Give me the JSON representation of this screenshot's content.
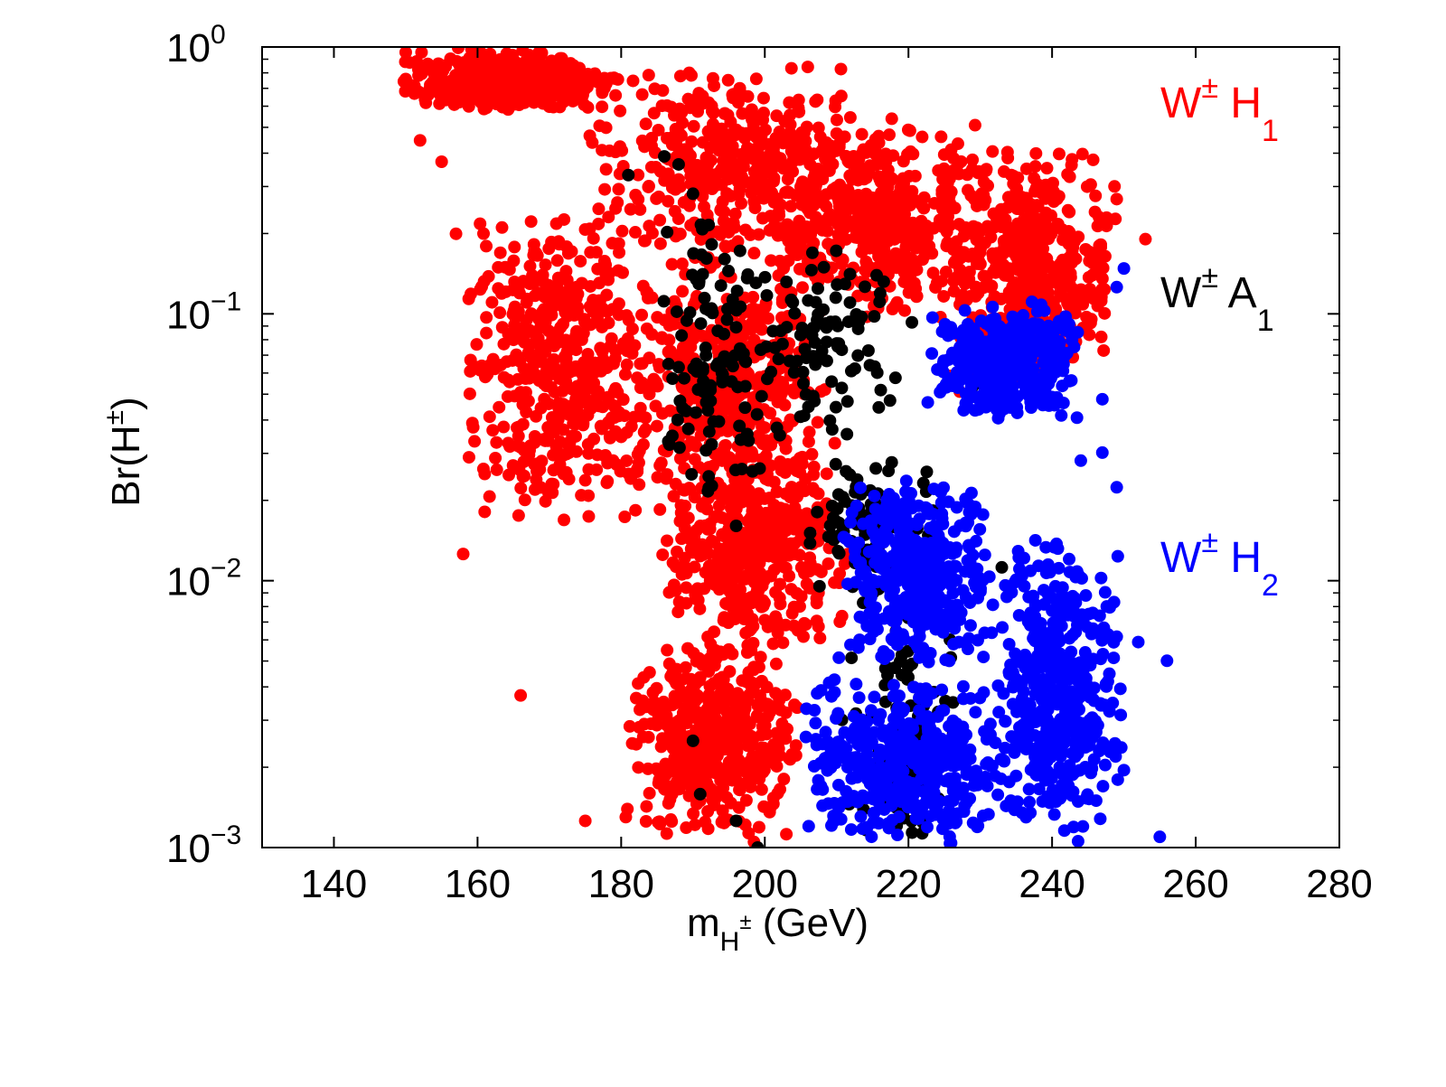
{
  "chart_data": {
    "type": "scatter",
    "title": "",
    "xlabel": {
      "main": "m",
      "sub": "H",
      "sup": "±",
      "unit": " (GeV)"
    },
    "ylabel": "Br(H^{±})",
    "ylabel_parts": {
      "main": "Br(H",
      "sup": "±",
      "close": ")"
    },
    "xlim": [
      130,
      280
    ],
    "ylim": [
      0.001,
      1
    ],
    "yscale": "log",
    "xticks": [
      140,
      160,
      180,
      200,
      220,
      240,
      260,
      280
    ],
    "xtick_labels": [
      "140",
      "160",
      "180",
      "200",
      "220",
      "240",
      "260",
      "280"
    ],
    "yticks": [
      0.001,
      0.01,
      0.1,
      1
    ],
    "ytick_labels": [
      {
        "base": "10",
        "exp": "−3"
      },
      {
        "base": "10",
        "exp": "−2"
      },
      {
        "base": "10",
        "exp": "−1"
      },
      {
        "base": "10",
        "exp": "0"
      }
    ],
    "grid": false,
    "series": [
      {
        "name": "W± H1",
        "color": "#ff0000",
        "generator": {
          "seed": 11,
          "count": 3600
        },
        "region": [
          {
            "x": [
              149,
              180
            ],
            "logy": [
              -0.25,
              0
            ]
          },
          {
            "x": [
              175,
              215
            ],
            "logy": [
              -0.85,
              -0.05
            ]
          },
          {
            "x": [
              200,
              232
            ],
            "logy": [
              -1.05,
              -0.25
            ]
          },
          {
            "x": [
              225,
              250
            ],
            "logy": [
              -1.3,
              -0.35
            ]
          },
          {
            "x": [
              180,
              210
            ],
            "logy": [
              -1.75,
              -0.8
            ]
          },
          {
            "x": [
              185,
              212
            ],
            "logy": [
              -2.3,
              -1.5
            ]
          },
          {
            "x": [
              180,
              205
            ],
            "logy": [
              -3,
              -2.2
            ]
          },
          {
            "x": [
              158,
              185
            ],
            "logy": [
              -1.8,
              -0.6
            ]
          }
        ],
        "points": [
          [
            150,
            -0.02
          ],
          [
            150,
            -0.12
          ],
          [
            152,
            -0.35
          ],
          [
            155,
            -0.43
          ],
          [
            157,
            -0.7
          ],
          [
            158,
            -1.9
          ],
          [
            160,
            -1.2
          ],
          [
            161,
            -1.6
          ],
          [
            163,
            -1.35
          ],
          [
            166,
            -1.5
          ],
          [
            166,
            -2.43
          ],
          [
            172,
            -1.6
          ],
          [
            175,
            -2.9
          ],
          [
            183,
            -2.45
          ],
          [
            189,
            -2.5
          ],
          [
            203,
            -2.95
          ],
          [
            249,
            -0.57
          ],
          [
            253,
            -0.72
          ]
        ]
      },
      {
        "name": "W± A1",
        "color": "#000000",
        "generator": {
          "seed": 29,
          "count": 420
        },
        "region": [
          {
            "x": [
              193,
              222
            ],
            "logy": [
              -1.5,
              -0.75
            ]
          },
          {
            "x": [
              205,
              225
            ],
            "logy": [
              -2.1,
              -1.5
            ]
          },
          {
            "x": [
              210,
              228
            ],
            "logy": [
              -3,
              -2.1
            ]
          },
          {
            "x": [
              185,
              200
            ],
            "logy": [
              -1.8,
              -0.6
            ]
          }
        ],
        "points": [
          [
            181,
            -0.48
          ],
          [
            186,
            -0.41
          ],
          [
            188,
            -0.44
          ],
          [
            190,
            -0.55
          ],
          [
            188,
            -1.2
          ],
          [
            190,
            -2.6
          ],
          [
            191,
            -2.8
          ],
          [
            196,
            -2.9
          ],
          [
            199,
            -3
          ],
          [
            229,
            -1.27
          ],
          [
            233,
            -1.95
          ]
        ]
      },
      {
        "name": "W± H2",
        "color": "#0000ff",
        "generator": {
          "seed": 47,
          "count": 1700
        },
        "region": [
          {
            "x": [
              205,
              235
            ],
            "logy": [
              -3,
              -2.35
            ]
          },
          {
            "x": [
              210,
              232
            ],
            "logy": [
              -2.35,
              -1.6
            ]
          },
          {
            "x": [
              222,
              245
            ],
            "logy": [
              -1.4,
              -0.95
            ]
          },
          {
            "x": [
              232,
              250
            ],
            "logy": [
              -3,
              -1.8
            ]
          }
        ],
        "points": [
          [
            244,
            -1.55
          ],
          [
            247,
            -1.52
          ],
          [
            249,
            -1.65
          ],
          [
            249,
            -2.21
          ],
          [
            250,
            -2.71
          ],
          [
            252,
            -2.23
          ],
          [
            255,
            -2.96
          ],
          [
            256,
            -2.3
          ],
          [
            249,
            -0.9
          ],
          [
            250,
            -0.83
          ],
          [
            247,
            -1.32
          ]
        ]
      }
    ],
    "annotations": [
      {
        "text": "W",
        "sup": "±",
        "rest": " H",
        "sub": "1",
        "color": "#ff0000",
        "series": 0
      },
      {
        "text": "W",
        "sup": "±",
        "rest": " A",
        "sub": "1",
        "color": "#000000",
        "series": 1
      },
      {
        "text": "W",
        "sup": "±",
        "rest": " H",
        "sub": "2",
        "color": "#0000ff",
        "series": 2
      }
    ]
  }
}
